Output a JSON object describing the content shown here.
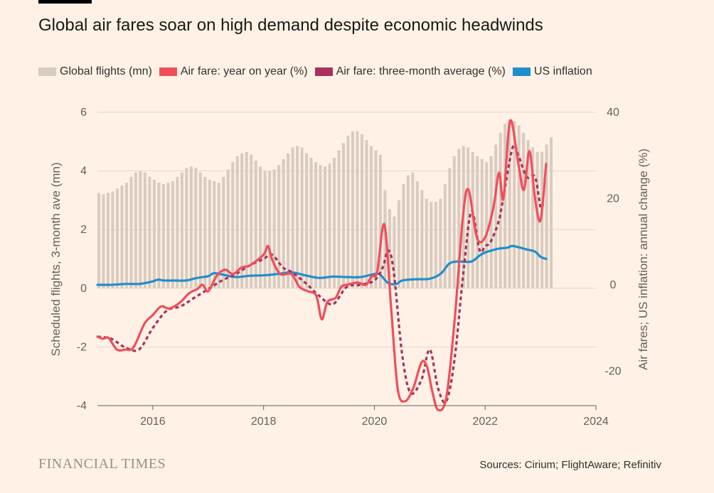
{
  "header": {
    "title": "Global air fares soar on high demand despite economic headwinds"
  },
  "legend": [
    {
      "label": "Global flights (mn)",
      "color": "#d9cbbf"
    },
    {
      "label": "Air fare: year on year (%)",
      "color": "#f04e5a"
    },
    {
      "label": "Air fare: three-month average (%)",
      "color": "#a9315b"
    },
    {
      "label": "US inflation",
      "color": "#1f8ecf"
    }
  ],
  "footer": {
    "brand": "FINANCIAL TIMES",
    "source": "Sources: Cirium; FlightAware; Refinitiv"
  },
  "chart_data": {
    "type": "bar+line",
    "title": "Global air fares soar on high demand despite economic headwinds",
    "x_range": [
      2015.0,
      2024.0
    ],
    "x_ticks": [
      "2016",
      "2018",
      "2020",
      "2022",
      "2024"
    ],
    "left_axis": {
      "label": "Scheduled flights, 3-month ave (mn)",
      "range": [
        -4,
        6
      ],
      "ticks": [
        "-4",
        "-2",
        "0",
        "2",
        "4",
        "6"
      ]
    },
    "right_axis": {
      "label": "Air fares; US inflation: annual change (%)",
      "range": [
        -28,
        40
      ],
      "ticks": [
        "-20",
        "0",
        "20",
        "40"
      ]
    },
    "grid": "horizontal",
    "series": [
      {
        "name": "Global flights (mn)",
        "kind": "bar",
        "axis": "left",
        "color": "#d9cbbf",
        "x_start": 2015.0,
        "x_step": 0.08333,
        "values": [
          3.25,
          3.2,
          3.25,
          3.3,
          3.4,
          3.5,
          3.6,
          3.8,
          3.95,
          4.0,
          3.95,
          3.8,
          3.7,
          3.6,
          3.55,
          3.6,
          3.65,
          3.8,
          3.95,
          4.1,
          4.15,
          4.1,
          3.95,
          3.8,
          3.7,
          3.65,
          3.6,
          3.8,
          4.05,
          4.3,
          4.5,
          4.6,
          4.65,
          4.55,
          4.35,
          4.15,
          4.0,
          4.0,
          4.05,
          4.2,
          4.4,
          4.6,
          4.8,
          4.85,
          4.8,
          4.6,
          4.45,
          4.3,
          4.2,
          4.15,
          4.25,
          4.45,
          4.7,
          4.95,
          5.2,
          5.35,
          5.35,
          5.25,
          5.05,
          4.85,
          4.7,
          4.55,
          3.35,
          2.7,
          2.45,
          3.0,
          3.55,
          3.85,
          3.95,
          3.65,
          3.35,
          3.05,
          2.95,
          2.95,
          3.05,
          3.55,
          4.1,
          4.5,
          4.75,
          4.85,
          4.8,
          4.65,
          4.5,
          4.4,
          4.3,
          4.5,
          4.9,
          5.3,
          5.6,
          5.75,
          5.7,
          5.55,
          5.3,
          5.05,
          4.8,
          4.65,
          4.65,
          4.9,
          5.15
        ]
      },
      {
        "name": "US inflation",
        "kind": "line",
        "axis": "right",
        "color": "#1f8ecf",
        "points": [
          [
            2015.0,
            0.0
          ],
          [
            2015.25,
            0.0
          ],
          [
            2015.5,
            0.2
          ],
          [
            2015.75,
            0.2
          ],
          [
            2015.9,
            0.5
          ],
          [
            2016.0,
            0.8
          ],
          [
            2016.1,
            1.2
          ],
          [
            2016.2,
            1.0
          ],
          [
            2016.4,
            1.0
          ],
          [
            2016.6,
            1.0
          ],
          [
            2016.8,
            1.6
          ],
          [
            2017.0,
            2.0
          ],
          [
            2017.1,
            2.7
          ],
          [
            2017.25,
            2.4
          ],
          [
            2017.5,
            1.8
          ],
          [
            2017.75,
            2.1
          ],
          [
            2018.0,
            2.2
          ],
          [
            2018.25,
            2.5
          ],
          [
            2018.5,
            2.9
          ],
          [
            2018.75,
            2.2
          ],
          [
            2019.0,
            1.6
          ],
          [
            2019.25,
            1.9
          ],
          [
            2019.5,
            1.8
          ],
          [
            2019.75,
            1.8
          ],
          [
            2020.0,
            2.5
          ],
          [
            2020.1,
            2.4
          ],
          [
            2020.25,
            0.4
          ],
          [
            2020.4,
            0.2
          ],
          [
            2020.5,
            1.0
          ],
          [
            2020.75,
            1.3
          ],
          [
            2021.0,
            1.4
          ],
          [
            2021.2,
            2.6
          ],
          [
            2021.35,
            4.9
          ],
          [
            2021.5,
            5.4
          ],
          [
            2021.75,
            5.4
          ],
          [
            2021.9,
            6.8
          ],
          [
            2022.0,
            7.5
          ],
          [
            2022.1,
            7.9
          ],
          [
            2022.25,
            8.4
          ],
          [
            2022.4,
            8.6
          ],
          [
            2022.5,
            9.0
          ],
          [
            2022.75,
            8.2
          ],
          [
            2022.9,
            7.7
          ],
          [
            2023.0,
            6.5
          ],
          [
            2023.1,
            6.0
          ]
        ]
      },
      {
        "name": "Air fare: three-month average (%)",
        "kind": "line",
        "axis": "right",
        "color": "#a9315b",
        "dashed": true,
        "points": [
          [
            2015.0,
            -12
          ],
          [
            2015.25,
            -12.5
          ],
          [
            2015.5,
            -14.5
          ],
          [
            2015.75,
            -15
          ],
          [
            2016.0,
            -10
          ],
          [
            2016.25,
            -6
          ],
          [
            2016.5,
            -5
          ],
          [
            2016.75,
            -3
          ],
          [
            2017.0,
            -1
          ],
          [
            2017.25,
            1
          ],
          [
            2017.5,
            2.5
          ],
          [
            2017.75,
            4.5
          ],
          [
            2018.0,
            6
          ],
          [
            2018.15,
            7
          ],
          [
            2018.35,
            4
          ],
          [
            2018.5,
            3
          ],
          [
            2018.75,
            0.5
          ],
          [
            2019.0,
            -2.5
          ],
          [
            2019.25,
            -4.5
          ],
          [
            2019.5,
            -0.5
          ],
          [
            2019.75,
            0
          ],
          [
            2020.0,
            1
          ],
          [
            2020.15,
            4
          ],
          [
            2020.25,
            8
          ],
          [
            2020.35,
            3
          ],
          [
            2020.5,
            -16
          ],
          [
            2020.65,
            -25
          ],
          [
            2020.85,
            -22
          ],
          [
            2021.0,
            -15
          ],
          [
            2021.15,
            -24
          ],
          [
            2021.3,
            -27
          ],
          [
            2021.45,
            -17
          ],
          [
            2021.6,
            2
          ],
          [
            2021.75,
            17
          ],
          [
            2021.9,
            8
          ],
          [
            2022.0,
            9
          ],
          [
            2022.1,
            10
          ],
          [
            2022.25,
            15
          ],
          [
            2022.35,
            22
          ],
          [
            2022.5,
            32
          ],
          [
            2022.6,
            30
          ],
          [
            2022.75,
            25
          ],
          [
            2022.9,
            25
          ],
          [
            2023.0,
            18
          ],
          [
            2023.05,
            19
          ]
        ]
      },
      {
        "name": "Air fare: year on year (%)",
        "kind": "line",
        "axis": "right",
        "color": "#f04e5a",
        "points": [
          [
            2015.0,
            -12
          ],
          [
            2015.1,
            -12.5
          ],
          [
            2015.2,
            -12.3
          ],
          [
            2015.35,
            -15
          ],
          [
            2015.5,
            -15
          ],
          [
            2015.65,
            -14.5
          ],
          [
            2015.85,
            -9
          ],
          [
            2016.0,
            -7
          ],
          [
            2016.15,
            -5
          ],
          [
            2016.3,
            -5.5
          ],
          [
            2016.5,
            -4
          ],
          [
            2016.65,
            -2
          ],
          [
            2016.8,
            -1
          ],
          [
            2016.9,
            0
          ],
          [
            2017.0,
            -1.5
          ],
          [
            2017.15,
            2
          ],
          [
            2017.3,
            3.5
          ],
          [
            2017.45,
            2.5
          ],
          [
            2017.6,
            4
          ],
          [
            2017.75,
            4.5
          ],
          [
            2018.0,
            7
          ],
          [
            2018.08,
            9
          ],
          [
            2018.15,
            6
          ],
          [
            2018.3,
            2.5
          ],
          [
            2018.5,
            2.5
          ],
          [
            2018.65,
            -0.5
          ],
          [
            2018.8,
            -1.5
          ],
          [
            2018.95,
            -2.5
          ],
          [
            2019.05,
            -8
          ],
          [
            2019.15,
            -4
          ],
          [
            2019.3,
            -3
          ],
          [
            2019.4,
            -0.5
          ],
          [
            2019.5,
            0
          ],
          [
            2019.7,
            0.5
          ],
          [
            2019.85,
            0
          ],
          [
            2019.95,
            2
          ],
          [
            2020.05,
            3
          ],
          [
            2020.18,
            14
          ],
          [
            2020.3,
            -5
          ],
          [
            2020.42,
            -24
          ],
          [
            2020.55,
            -27
          ],
          [
            2020.7,
            -24
          ],
          [
            2020.85,
            -18
          ],
          [
            2020.95,
            -19
          ],
          [
            2021.05,
            -25
          ],
          [
            2021.15,
            -29
          ],
          [
            2021.3,
            -26
          ],
          [
            2021.45,
            -8
          ],
          [
            2021.6,
            16
          ],
          [
            2021.7,
            22
          ],
          [
            2021.85,
            11
          ],
          [
            2022.0,
            11
          ],
          [
            2022.15,
            18
          ],
          [
            2022.25,
            26
          ],
          [
            2022.33,
            20
          ],
          [
            2022.45,
            38
          ],
          [
            2022.6,
            28
          ],
          [
            2022.7,
            22
          ],
          [
            2022.8,
            31
          ],
          [
            2022.9,
            20
          ],
          [
            2023.0,
            15
          ],
          [
            2023.1,
            28
          ]
        ]
      }
    ]
  }
}
